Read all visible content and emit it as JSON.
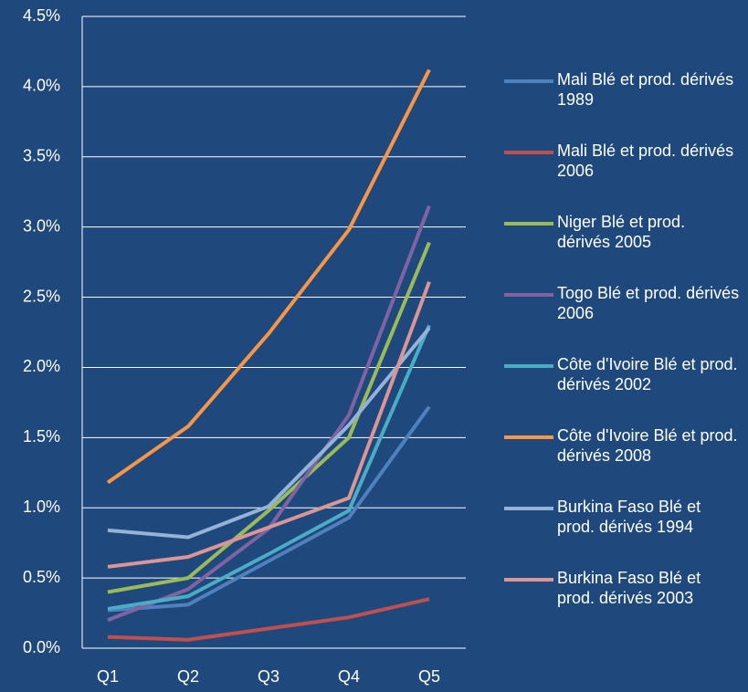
{
  "chart_data": {
    "type": "line",
    "categories": [
      "Q1",
      "Q2",
      "Q3",
      "Q4",
      "Q5"
    ],
    "series": [
      {
        "name": "Mali Blé et prod. dérivés 1989",
        "color": "#4f81bd",
        "values": [
          0.27,
          0.31,
          0.62,
          0.93,
          1.72
        ]
      },
      {
        "name": "Mali Blé et prod. dérivés 2006",
        "color": "#c0504d",
        "values": [
          0.08,
          0.06,
          0.14,
          0.22,
          0.35
        ]
      },
      {
        "name": "Niger Blé et prod. dérivés 2005",
        "color": "#9bbb59",
        "values": [
          0.4,
          0.5,
          0.98,
          1.5,
          2.89
        ]
      },
      {
        "name": "Togo Blé et prod. dérivés 2006",
        "color": "#8064a2",
        "values": [
          0.2,
          0.42,
          0.85,
          1.66,
          3.15
        ]
      },
      {
        "name": "Côte d'Ivoire Blé et prod. dérivés 2002",
        "color": "#4bacc6",
        "values": [
          0.28,
          0.37,
          0.67,
          0.98,
          2.3
        ]
      },
      {
        "name": "Côte d'Ivoire Blé et prod. dérivés 2008",
        "color": "#f79646",
        "values": [
          1.18,
          1.58,
          2.24,
          2.98,
          4.12
        ]
      },
      {
        "name": "Burkina Faso Blé et prod. dérivés 1994",
        "color": "#95b3d7",
        "values": [
          0.84,
          0.79,
          1.01,
          1.59,
          2.28
        ]
      },
      {
        "name": "Burkina Faso Blé et prod. dérivés 2003",
        "color": "#d99694",
        "values": [
          0.58,
          0.65,
          0.86,
          1.07,
          2.61
        ]
      }
    ],
    "ylim": [
      0,
      4.5
    ],
    "yticks": [
      {
        "value": 0,
        "label": "0.0%"
      },
      {
        "value": 0.5,
        "label": "0.5%"
      },
      {
        "value": 1,
        "label": "1.0%"
      },
      {
        "value": 1.5,
        "label": "1.5%"
      },
      {
        "value": 2,
        "label": "2.0%"
      },
      {
        "value": 2.5,
        "label": "2.5%"
      },
      {
        "value": 3,
        "label": "3.0%"
      },
      {
        "value": 3.5,
        "label": "3.5%"
      },
      {
        "value": 4,
        "label": "4.0%"
      },
      {
        "value": 4.5,
        "label": "4.5%"
      }
    ],
    "grid": true,
    "legend": "right"
  }
}
